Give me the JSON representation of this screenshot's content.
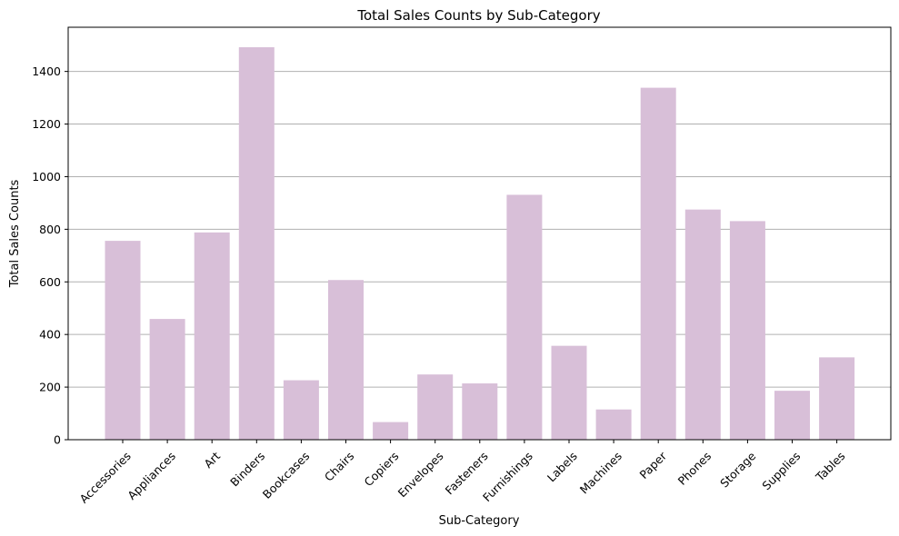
{
  "chart_data": {
    "type": "bar",
    "title": "Total Sales Counts by Sub-Category",
    "xlabel": "Sub-Category",
    "ylabel": "Total Sales Counts",
    "categories": [
      "Accessories",
      "Appliances",
      "Art",
      "Binders",
      "Bookcases",
      "Chairs",
      "Copiers",
      "Envelopes",
      "Fasteners",
      "Furnishings",
      "Labels",
      "Machines",
      "Paper",
      "Phones",
      "Storage",
      "Supplies",
      "Tables"
    ],
    "values": [
      756,
      459,
      788,
      1492,
      226,
      607,
      67,
      248,
      214,
      931,
      357,
      115,
      1338,
      875,
      831,
      186,
      313
    ],
    "yticks": [
      0,
      200,
      400,
      600,
      800,
      1000,
      1200,
      1400
    ],
    "ylim": [
      0,
      1568
    ],
    "grid": "y-axis",
    "bar_color": "#d8bfd8"
  }
}
